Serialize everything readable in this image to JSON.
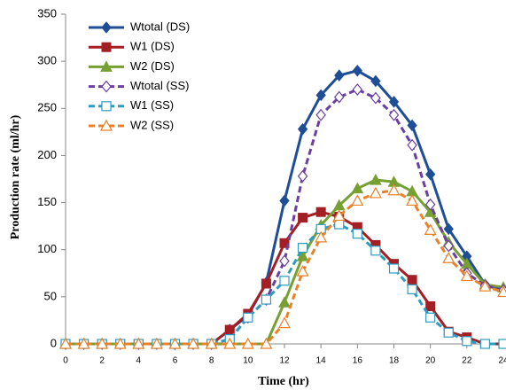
{
  "chart_data": {
    "type": "line",
    "x_label": "Time (hr)",
    "y_label": "Production rate (ml/hr)",
    "x": [
      0,
      1,
      2,
      3,
      4,
      5,
      6,
      7,
      8,
      9,
      10,
      11,
      12,
      13,
      14,
      15,
      16,
      17,
      18,
      19,
      20,
      21,
      22,
      23,
      24
    ],
    "xlim": [
      0,
      24
    ],
    "xticks": [
      0,
      2,
      4,
      6,
      8,
      10,
      12,
      14,
      16,
      18,
      20,
      22,
      24
    ],
    "ylim": [
      0,
      350
    ],
    "yticks": [
      0,
      50,
      100,
      150,
      200,
      250,
      300,
      350
    ],
    "legend": "upper-left",
    "series": [
      {
        "name": "Wtotal (DS)",
        "color": "#1f4e96",
        "marker": "diamond",
        "dashed": false,
        "values": [
          0,
          0,
          0,
          0,
          0,
          0,
          0,
          0,
          0,
          15,
          30,
          65,
          152,
          228,
          264,
          285,
          290,
          279,
          257,
          232,
          180,
          122,
          93,
          63,
          58
        ]
      },
      {
        "name": "W1 (DS)",
        "color": "#a31f24",
        "marker": "square",
        "dashed": false,
        "values": [
          0,
          0,
          0,
          0,
          0,
          0,
          0,
          0,
          0,
          15,
          32,
          64,
          107,
          134,
          140,
          135,
          124,
          105,
          85,
          68,
          40,
          13,
          7,
          0,
          0
        ]
      },
      {
        "name": "W2 (DS)",
        "color": "#76a033",
        "marker": "triangle",
        "dashed": false,
        "values": [
          0,
          0,
          0,
          0,
          0,
          0,
          0,
          0,
          0,
          0,
          0,
          0,
          44,
          93,
          126,
          147,
          165,
          174,
          172,
          162,
          140,
          108,
          85,
          63,
          60
        ]
      },
      {
        "name": "Wtotal (SS)",
        "color": "#6b3fa0",
        "marker": "diamond-open",
        "dashed": true,
        "values": [
          0,
          0,
          0,
          0,
          0,
          0,
          0,
          0,
          0,
          5,
          28,
          47,
          88,
          178,
          243,
          262,
          270,
          261,
          243,
          211,
          148,
          104,
          75,
          62,
          57
        ]
      },
      {
        "name": "W1 (SS)",
        "color": "#2e9cc0",
        "marker": "square-open",
        "dashed": true,
        "values": [
          0,
          0,
          0,
          0,
          0,
          0,
          0,
          0,
          0,
          5,
          28,
          47,
          67,
          102,
          122,
          127,
          117,
          99,
          80,
          58,
          28,
          12,
          3,
          0,
          0
        ]
      },
      {
        "name": "W2 (SS)",
        "color": "#e8822a",
        "marker": "triangle-open",
        "dashed": true,
        "values": [
          0,
          0,
          0,
          0,
          0,
          0,
          0,
          0,
          0,
          0,
          0,
          0,
          22,
          77,
          113,
          136,
          152,
          160,
          163,
          152,
          121,
          91,
          72,
          61,
          55
        ]
      }
    ]
  }
}
